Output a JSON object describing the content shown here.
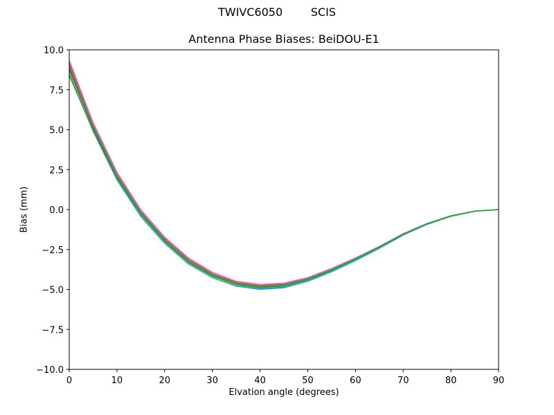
{
  "figure": {
    "suptitle": "TWIVC6050        SCIS",
    "title": "Antenna Phase Biases: BeiDOU-E1",
    "xlabel": "Elvation angle (degrees)",
    "ylabel": "Bias (mm)"
  },
  "chart_data": {
    "type": "line",
    "title": "Antenna Phase Biases: BeiDOU-E1",
    "suptitle": "TWIVC6050        SCIS",
    "xlabel": "Elvation angle (degrees)",
    "ylabel": "Bias (mm)",
    "xlim": [
      0,
      90
    ],
    "ylim": [
      -10,
      10
    ],
    "grid": false,
    "legend": null,
    "x_ticks": [
      0,
      10,
      20,
      30,
      40,
      50,
      60,
      70,
      80,
      90
    ],
    "x_tick_labels": [
      "0",
      "10",
      "20",
      "30",
      "40",
      "50",
      "60",
      "70",
      "80",
      "90"
    ],
    "y_ticks": [
      10,
      7.5,
      5,
      2.5,
      0,
      -2.5,
      -5,
      -7.5,
      -10
    ],
    "y_tick_labels": [
      "10.0",
      "7.5",
      "5.0",
      "2.5",
      "0.0",
      "−2.5",
      "−5.0",
      "−7.5",
      "−10.0"
    ],
    "x": [
      0,
      5,
      10,
      15,
      20,
      25,
      30,
      35,
      40,
      45,
      50,
      55,
      60,
      65,
      70,
      75,
      80,
      85,
      90
    ],
    "series": [
      {
        "name": "s1",
        "color": "#1f77b4",
        "values": [
          8.75,
          5.05,
          1.95,
          -0.35,
          -2.05,
          -3.35,
          -4.2,
          -4.75,
          -4.95,
          -4.85,
          -4.45,
          -3.85,
          -3.15,
          -2.4,
          -1.58,
          -0.92,
          -0.42,
          -0.1,
          0.0
        ]
      },
      {
        "name": "s2",
        "color": "#ff7f0e",
        "values": [
          8.95,
          5.2,
          2.1,
          -0.2,
          -1.9,
          -3.2,
          -4.1,
          -4.62,
          -4.82,
          -4.72,
          -4.35,
          -3.78,
          -3.1,
          -2.36,
          -1.55,
          -0.9,
          -0.4,
          -0.1,
          0.0
        ]
      },
      {
        "name": "s3",
        "color": "#d62728",
        "values": [
          9.2,
          5.35,
          2.25,
          -0.1,
          -1.8,
          -3.1,
          -4.0,
          -4.55,
          -4.75,
          -4.65,
          -4.3,
          -3.72,
          -3.05,
          -2.32,
          -1.52,
          -0.88,
          -0.39,
          -0.1,
          0.0
        ]
      },
      {
        "name": "s4",
        "color": "#9467bd",
        "values": [
          9.05,
          5.3,
          2.2,
          -0.15,
          -1.85,
          -3.15,
          -4.05,
          -4.6,
          -4.8,
          -4.7,
          -4.33,
          -3.75,
          -3.08,
          -2.34,
          -1.54,
          -0.89,
          -0.4,
          -0.1,
          0.0
        ]
      },
      {
        "name": "s5",
        "color": "#8c564b",
        "values": [
          8.85,
          5.15,
          2.05,
          -0.25,
          -1.95,
          -3.25,
          -4.12,
          -4.65,
          -4.85,
          -4.75,
          -4.38,
          -3.8,
          -3.12,
          -2.37,
          -1.56,
          -0.9,
          -0.41,
          -0.1,
          0.0
        ]
      },
      {
        "name": "s6",
        "color": "#e377c2",
        "values": [
          9.35,
          5.45,
          2.35,
          0.0,
          -1.72,
          -3.02,
          -3.92,
          -4.48,
          -4.68,
          -4.6,
          -4.25,
          -3.68,
          -3.02,
          -2.3,
          -1.5,
          -0.87,
          -0.38,
          -0.09,
          0.0
        ]
      },
      {
        "name": "s7",
        "color": "#7f7f7f",
        "values": [
          9.1,
          5.32,
          2.22,
          -0.12,
          -1.82,
          -3.12,
          -4.02,
          -4.57,
          -4.77,
          -4.67,
          -4.31,
          -3.73,
          -3.06,
          -2.33,
          -1.53,
          -0.88,
          -0.39,
          -0.1,
          0.0
        ]
      },
      {
        "name": "s8",
        "color": "#bcbd22",
        "values": [
          8.6,
          4.95,
          1.9,
          -0.4,
          -2.08,
          -3.38,
          -4.22,
          -4.72,
          -4.9,
          -4.8,
          -4.42,
          -3.83,
          -3.14,
          -2.39,
          -1.57,
          -0.91,
          -0.41,
          -0.1,
          0.0
        ]
      },
      {
        "name": "s9",
        "color": "#17becf",
        "values": [
          8.5,
          4.9,
          1.85,
          -0.45,
          -2.12,
          -3.42,
          -4.27,
          -4.8,
          -5.0,
          -4.9,
          -4.5,
          -3.9,
          -3.2,
          -2.43,
          -1.6,
          -0.93,
          -0.43,
          -0.11,
          0.0
        ]
      },
      {
        "name": "s10",
        "color": "#2ca02c",
        "values": [
          8.4,
          4.95,
          1.95,
          -0.3,
          -2.0,
          -3.3,
          -4.15,
          -4.68,
          -4.88,
          -4.78,
          -4.4,
          -3.82,
          -3.13,
          -2.38,
          -1.56,
          -0.9,
          -0.41,
          -0.1,
          0.0
        ]
      }
    ]
  },
  "colors": {
    "axes": "#000000",
    "background": "#ffffff"
  }
}
